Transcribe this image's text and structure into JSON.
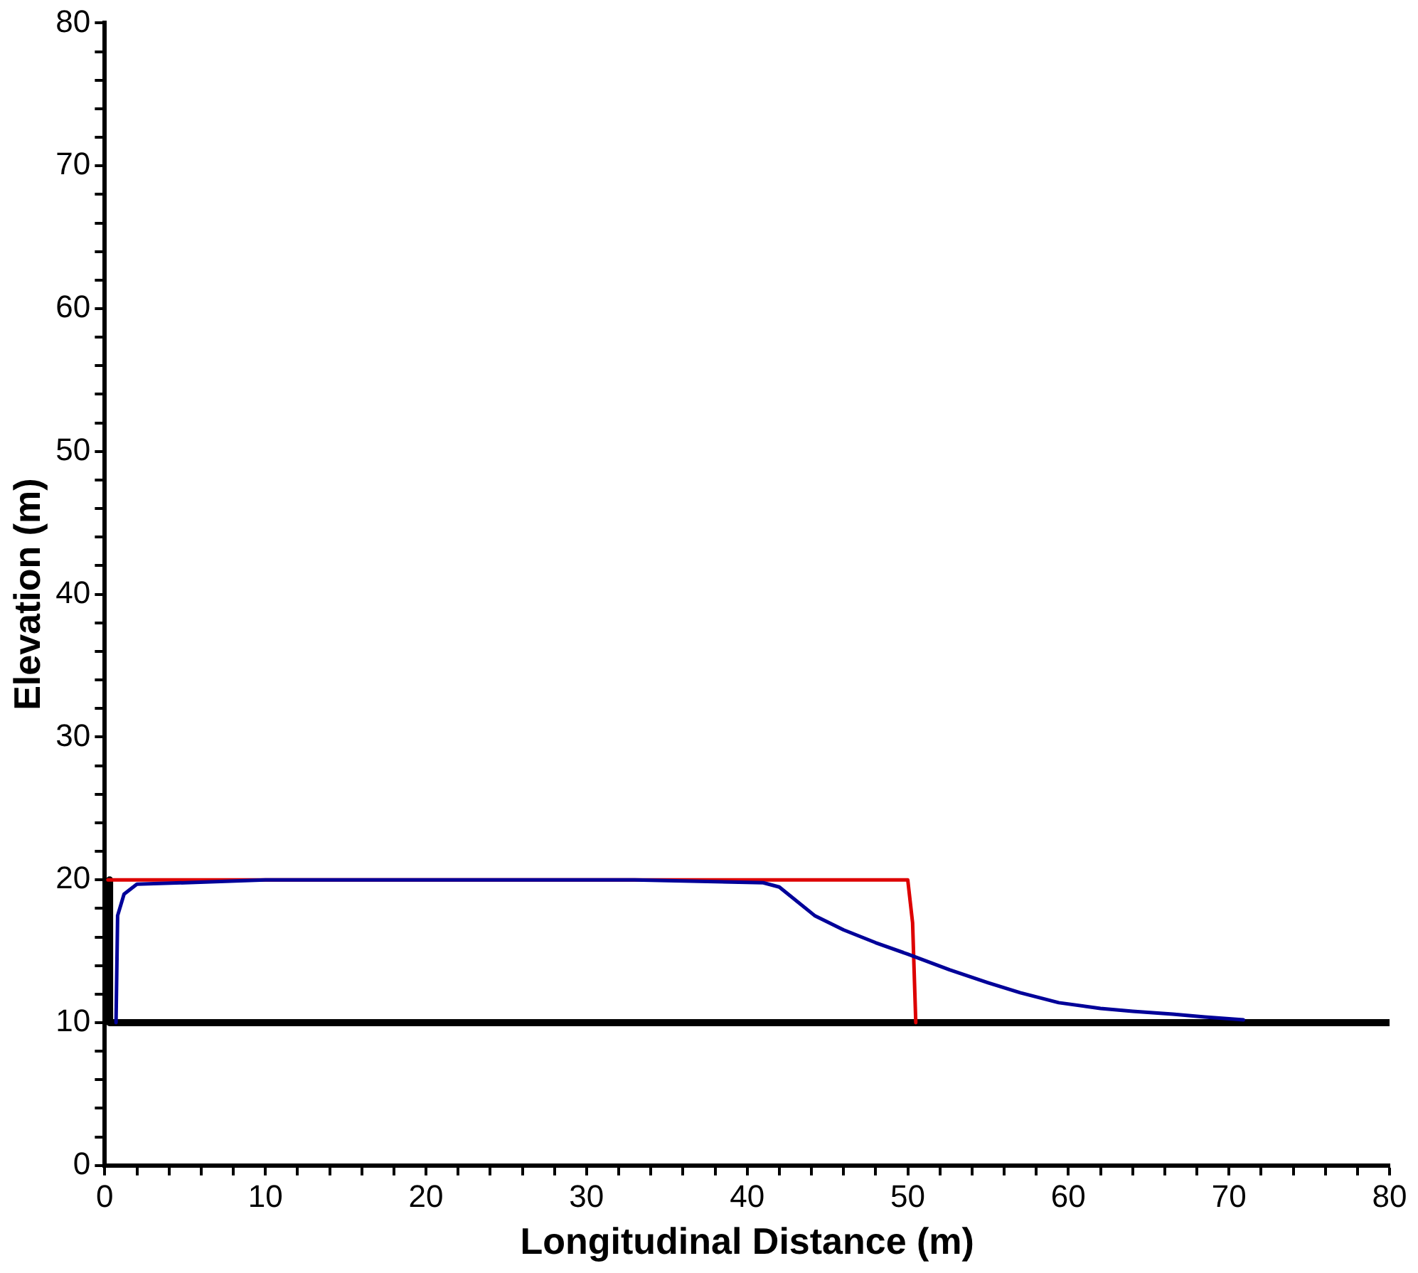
{
  "chart_data": {
    "type": "line",
    "xlabel": "Longitudinal Distance (m)",
    "ylabel": "Elevation (m)",
    "xlim": [
      0,
      80
    ],
    "ylim": [
      0,
      80
    ],
    "xticks": [
      0,
      {
        "value": 2,
        "label": null
      },
      {
        "value": 4,
        "label": null
      },
      {
        "value": 6,
        "label": null
      },
      {
        "value": 8,
        "label": null
      },
      10,
      {
        "value": 12,
        "label": null
      },
      {
        "value": 14,
        "label": null
      },
      {
        "value": 16,
        "label": null
      },
      {
        "value": 18,
        "label": null
      },
      20,
      {
        "value": 22,
        "label": null
      },
      {
        "value": 24,
        "label": null
      },
      {
        "value": 26,
        "label": null
      },
      {
        "value": 28,
        "label": null
      },
      30,
      {
        "value": 32,
        "label": null
      },
      {
        "value": 34,
        "label": null
      },
      {
        "value": 36,
        "label": null
      },
      {
        "value": 38,
        "label": null
      },
      40,
      {
        "value": 42,
        "label": null
      },
      {
        "value": 44,
        "label": null
      },
      {
        "value": 46,
        "label": null
      },
      {
        "value": 48,
        "label": null
      },
      50,
      {
        "value": 52,
        "label": null
      },
      {
        "value": 54,
        "label": null
      },
      {
        "value": 56,
        "label": null
      },
      {
        "value": 58,
        "label": null
      },
      60,
      {
        "value": 62,
        "label": null
      },
      {
        "value": 64,
        "label": null
      },
      {
        "value": 66,
        "label": null
      },
      {
        "value": 68,
        "label": null
      },
      70,
      {
        "value": 72,
        "label": null
      },
      {
        "value": 74,
        "label": null
      },
      {
        "value": 76,
        "label": null
      },
      {
        "value": 78,
        "label": null
      },
      80
    ],
    "yticks": [
      0,
      {
        "value": 2,
        "label": null
      },
      {
        "value": 4,
        "label": null
      },
      {
        "value": 6,
        "label": null
      },
      {
        "value": 8,
        "label": null
      },
      10,
      {
        "value": 12,
        "label": null
      },
      {
        "value": 14,
        "label": null
      },
      {
        "value": 16,
        "label": null
      },
      {
        "value": 18,
        "label": null
      },
      20,
      {
        "value": 22,
        "label": null
      },
      {
        "value": 24,
        "label": null
      },
      {
        "value": 26,
        "label": null
      },
      {
        "value": 28,
        "label": null
      },
      30,
      {
        "value": 32,
        "label": null
      },
      {
        "value": 34,
        "label": null
      },
      {
        "value": 36,
        "label": null
      },
      {
        "value": 38,
        "label": null
      },
      40,
      {
        "value": 42,
        "label": null
      },
      {
        "value": 44,
        "label": null
      },
      {
        "value": 46,
        "label": null
      },
      {
        "value": 48,
        "label": null
      },
      50,
      {
        "value": 52,
        "label": null
      },
      {
        "value": 54,
        "label": null
      },
      {
        "value": 56,
        "label": null
      },
      {
        "value": 58,
        "label": null
      },
      60,
      {
        "value": 62,
        "label": null
      },
      {
        "value": 64,
        "label": null
      },
      {
        "value": 66,
        "label": null
      },
      {
        "value": 68,
        "label": null
      },
      70,
      {
        "value": 72,
        "label": null
      },
      {
        "value": 74,
        "label": null
      },
      {
        "value": 76,
        "label": null
      },
      {
        "value": 78,
        "label": null
      },
      80
    ],
    "grid": false,
    "legend": false,
    "marker": "none",
    "line_style": "solid",
    "series": [
      {
        "color": "#000000",
        "x": [
          0.3,
          0.3,
          80
        ],
        "values": [
          20,
          10,
          10
        ]
      },
      {
        "color": "#dd0000",
        "x": [
          0.2,
          1.5,
          10,
          20,
          30,
          40,
          50,
          50.3,
          50.5
        ],
        "values": [
          20,
          20,
          20,
          20,
          20,
          20,
          20,
          17,
          10
        ]
      },
      {
        "color": "#000099",
        "x": [
          0.7,
          0.8,
          1.2,
          2,
          5,
          10,
          20,
          33,
          41,
          42,
          44.2,
          46,
          48,
          50,
          52.6,
          55,
          57,
          59.4,
          62,
          64,
          66.5,
          68.5,
          70.9
        ],
        "values": [
          10,
          17.5,
          19,
          19.7,
          19.8,
          20,
          20,
          20,
          19.8,
          19.5,
          17.5,
          16.5,
          15.6,
          14.8,
          13.7,
          12.8,
          12.1,
          11.4,
          11,
          10.8,
          10.6,
          10.4,
          10.2
        ]
      }
    ]
  }
}
